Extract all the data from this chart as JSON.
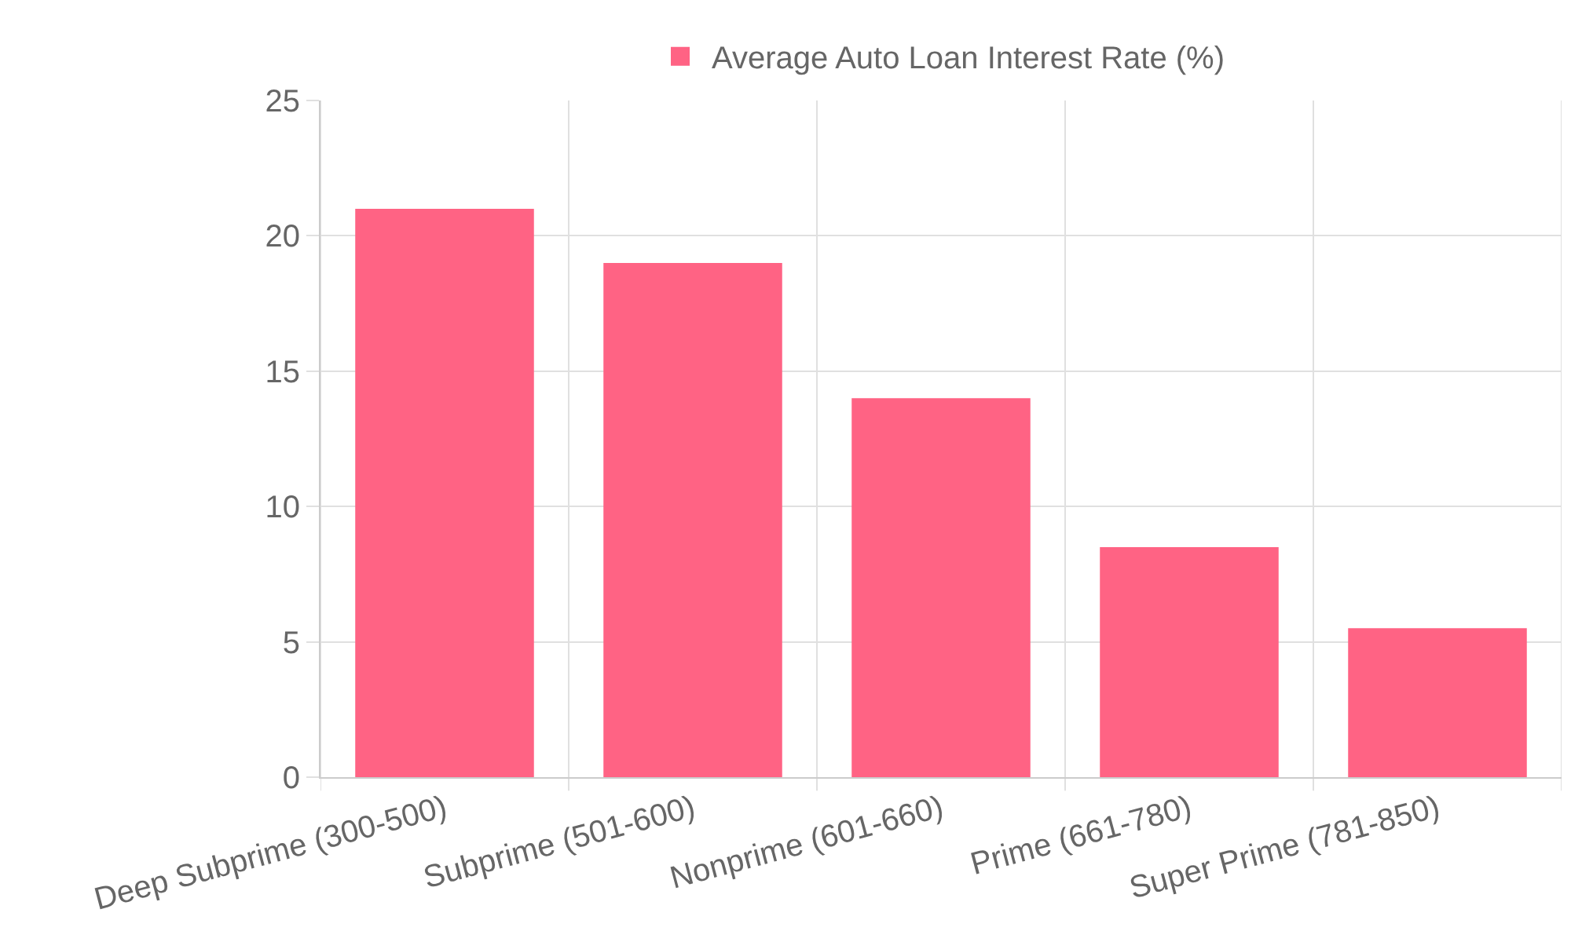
{
  "chart_data": {
    "type": "bar",
    "categories": [
      "Deep Subprime (300-500)",
      "Subprime (501-600)",
      "Nonprime (601-660)",
      "Prime (661-780)",
      "Super Prime (781-850)"
    ],
    "series": [
      {
        "name": "Average Auto Loan Interest Rate (%)",
        "color": "#ff6384",
        "values": [
          21,
          19,
          14,
          8.5,
          5.5
        ]
      }
    ],
    "ylim": [
      0,
      25
    ],
    "yticks": [
      0,
      5,
      10,
      15,
      20,
      25
    ],
    "grid": true,
    "legend": "top"
  }
}
